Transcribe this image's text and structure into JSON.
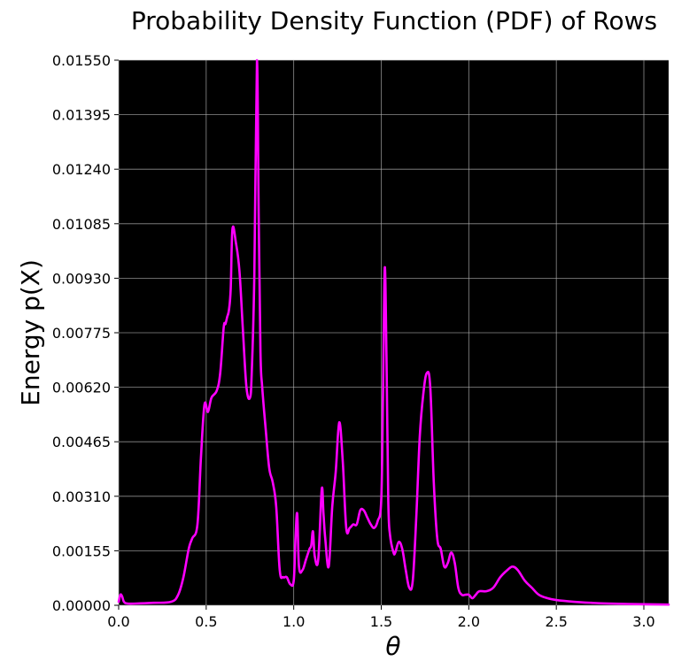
{
  "chart_data": {
    "type": "line",
    "title": "Probability Density Function (PDF) of Rows",
    "xlabel": "θ",
    "ylabel": "Energy p(X)",
    "xlim": [
      0.0,
      3.1416
    ],
    "ylim": [
      0.0,
      0.0155
    ],
    "x_ticks": [
      "0.0",
      "0.5",
      "1.0",
      "1.5",
      "2.0",
      "2.5",
      "3.0"
    ],
    "x_tick_values": [
      0.0,
      0.5,
      1.0,
      1.5,
      2.0,
      2.5,
      3.0
    ],
    "y_ticks": [
      "0.00000",
      "0.00155",
      "0.00310",
      "0.00465",
      "0.00620",
      "0.00775",
      "0.00930",
      "0.01085",
      "0.01240",
      "0.01395",
      "0.01550"
    ],
    "y_tick_values": [
      0.0,
      0.00155,
      0.0031,
      0.00465,
      0.0062,
      0.00775,
      0.0093,
      0.01085,
      0.0124,
      0.01395,
      0.0155
    ],
    "grid": true,
    "background": "#000000",
    "line_color": "#ff00ff",
    "series": [
      {
        "x": [
          0.0,
          0.01,
          0.02,
          0.03,
          0.05,
          0.1,
          0.2,
          0.3,
          0.34,
          0.37,
          0.4,
          0.42,
          0.45,
          0.47,
          0.49,
          0.51,
          0.53,
          0.56,
          0.58,
          0.6,
          0.61,
          0.62,
          0.63,
          0.64,
          0.65,
          0.67,
          0.69,
          0.71,
          0.73,
          0.75,
          0.76,
          0.775,
          0.79,
          0.8,
          0.81,
          0.82,
          0.84,
          0.86,
          0.88,
          0.9,
          0.92,
          0.94,
          0.96,
          0.98,
          1.0,
          1.01,
          1.02,
          1.03,
          1.05,
          1.07,
          1.09,
          1.1,
          1.11,
          1.12,
          1.14,
          1.16,
          1.17,
          1.18,
          1.2,
          1.22,
          1.24,
          1.26,
          1.28,
          1.3,
          1.32,
          1.34,
          1.36,
          1.38,
          1.4,
          1.42,
          1.44,
          1.46,
          1.48,
          1.5,
          1.51,
          1.52,
          1.53,
          1.54,
          1.55,
          1.57,
          1.58,
          1.6,
          1.62,
          1.64,
          1.66,
          1.68,
          1.7,
          1.72,
          1.74,
          1.76,
          1.78,
          1.8,
          1.82,
          1.84,
          1.86,
          1.88,
          1.9,
          1.92,
          1.94,
          1.96,
          1.98,
          2.0,
          2.02,
          2.04,
          2.06,
          2.1,
          2.14,
          2.18,
          2.22,
          2.25,
          2.28,
          2.32,
          2.36,
          2.4,
          2.45,
          2.5,
          2.6,
          2.7,
          2.8,
          3.0,
          3.1416
        ],
        "y": [
          0.0001,
          0.0003,
          0.00025,
          0.0001,
          5e-05,
          5e-05,
          7e-05,
          0.0001,
          0.0003,
          0.0008,
          0.0016,
          0.0019,
          0.0023,
          0.0042,
          0.0057,
          0.0055,
          0.0059,
          0.0061,
          0.0066,
          0.0079,
          0.008,
          0.0082,
          0.0084,
          0.009,
          0.0107,
          0.0103,
          0.0095,
          0.0078,
          0.0062,
          0.0059,
          0.0066,
          0.0094,
          0.0155,
          0.011,
          0.0072,
          0.0062,
          0.005,
          0.0039,
          0.0035,
          0.0028,
          0.001,
          0.0008,
          0.0008,
          0.0006,
          0.0007,
          0.0019,
          0.0026,
          0.0011,
          0.001,
          0.0013,
          0.0016,
          0.0017,
          0.0021,
          0.0014,
          0.0013,
          0.0033,
          0.0026,
          0.0019,
          0.0011,
          0.0028,
          0.0038,
          0.0052,
          0.0041,
          0.0022,
          0.0022,
          0.0023,
          0.0023,
          0.0027,
          0.0027,
          0.0025,
          0.0023,
          0.0022,
          0.0024,
          0.003,
          0.006,
          0.0096,
          0.007,
          0.003,
          0.002,
          0.0015,
          0.0015,
          0.0018,
          0.0016,
          0.001,
          0.0005,
          0.0007,
          0.0025,
          0.0048,
          0.006,
          0.0066,
          0.0062,
          0.0035,
          0.0019,
          0.0016,
          0.0011,
          0.0012,
          0.0015,
          0.0012,
          0.0005,
          0.0003,
          0.0003,
          0.0003,
          0.0002,
          0.0003,
          0.0004,
          0.0004,
          0.0005,
          0.0008,
          0.001,
          0.0011,
          0.001,
          0.0007,
          0.0005,
          0.0003,
          0.0002,
          0.00015,
          0.0001,
          7e-05,
          5e-05,
          3e-05,
          2e-05
        ]
      }
    ]
  }
}
